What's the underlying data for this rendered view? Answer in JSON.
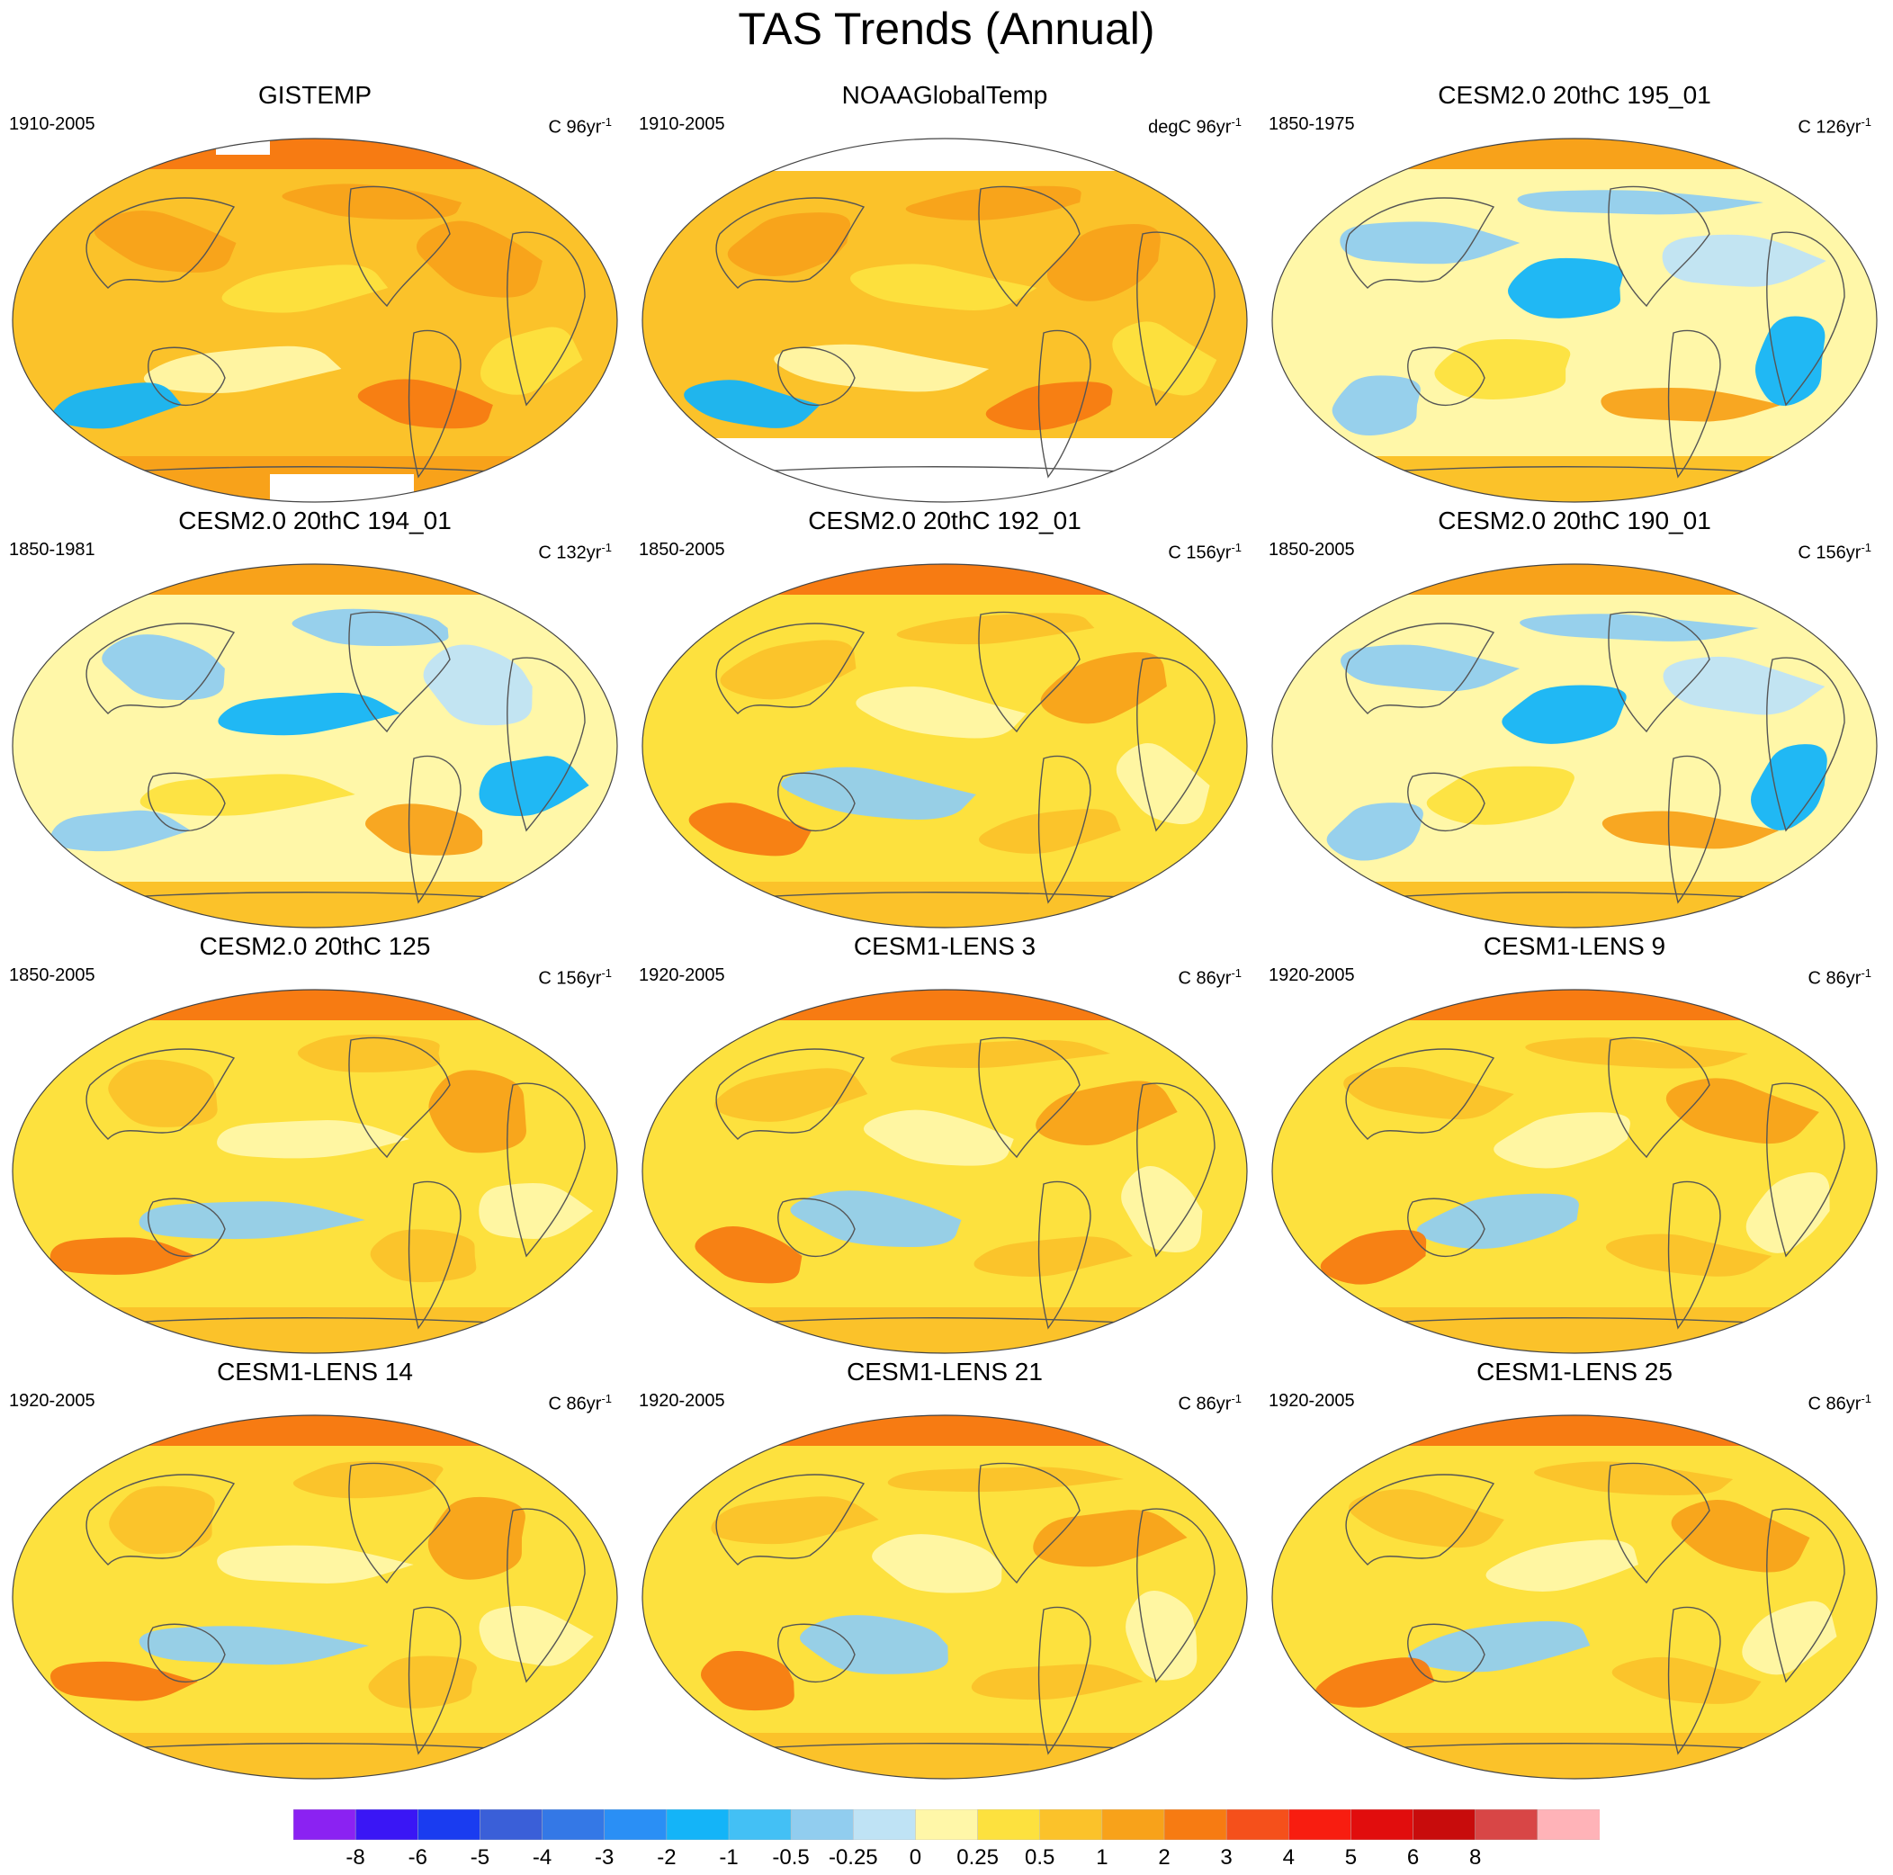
{
  "title": "TAS Trends (Annual)",
  "chart_data": [
    {
      "type": "heatmap",
      "title": "GISTEMP",
      "period": "1910-2005",
      "units_base": "C 96yr",
      "units_exp": "-1",
      "palette_theme": "warm",
      "missing": "polar"
    },
    {
      "type": "heatmap",
      "title": "NOAAGlobalTemp",
      "period": "1910-2005",
      "units_base": "degC 96yr",
      "units_exp": "-1",
      "palette_theme": "warm",
      "missing": "polar-large"
    },
    {
      "type": "heatmap",
      "title": "CESM2.0 20thC 195_01",
      "period": "1850-1975",
      "units_base": "C 126yr",
      "units_exp": "-1",
      "palette_theme": "cool",
      "missing": "none"
    },
    {
      "type": "heatmap",
      "title": "CESM2.0 20thC 194_01",
      "period": "1850-1981",
      "units_base": "C 132yr",
      "units_exp": "-1",
      "palette_theme": "cool",
      "missing": "none"
    },
    {
      "type": "heatmap",
      "title": "CESM2.0 20thC 192_01",
      "period": "1850-2005",
      "units_base": "C 156yr",
      "units_exp": "-1",
      "palette_theme": "mixed",
      "missing": "none"
    },
    {
      "type": "heatmap",
      "title": "CESM2.0 20thC 190_01",
      "period": "1850-2005",
      "units_base": "C 156yr",
      "units_exp": "-1",
      "palette_theme": "cool",
      "missing": "none"
    },
    {
      "type": "heatmap",
      "title": "CESM2.0 20thC 125",
      "period": "1850-2005",
      "units_base": "C 156yr",
      "units_exp": "-1",
      "palette_theme": "mixed",
      "missing": "none"
    },
    {
      "type": "heatmap",
      "title": "CESM1-LENS 3",
      "period": "1920-2005",
      "units_base": "C 86yr",
      "units_exp": "-1",
      "palette_theme": "mixed",
      "missing": "none"
    },
    {
      "type": "heatmap",
      "title": "CESM1-LENS 9",
      "period": "1920-2005",
      "units_base": "C 86yr",
      "units_exp": "-1",
      "palette_theme": "mixed",
      "missing": "none"
    },
    {
      "type": "heatmap",
      "title": "CESM1-LENS 14",
      "period": "1920-2005",
      "units_base": "C 86yr",
      "units_exp": "-1",
      "palette_theme": "mixed",
      "missing": "none"
    },
    {
      "type": "heatmap",
      "title": "CESM1-LENS 21",
      "period": "1920-2005",
      "units_base": "C 86yr",
      "units_exp": "-1",
      "palette_theme": "mixed",
      "missing": "none"
    },
    {
      "type": "heatmap",
      "title": "CESM1-LENS 25",
      "period": "1920-2005",
      "units_base": "C 86yr",
      "units_exp": "-1",
      "palette_theme": "mixed",
      "missing": "none"
    }
  ],
  "colorbar": {
    "labels": [
      "-8",
      "-6",
      "-5",
      "-4",
      "-3",
      "-2",
      "-1",
      "-0.5",
      "-0.25",
      "0",
      "0.25",
      "0.5",
      "1",
      "2",
      "3",
      "4",
      "5",
      "6",
      "8"
    ],
    "colors": [
      "#8b22f2",
      "#3a16f5",
      "#1a3cf0",
      "#3a5fd8",
      "#3478e6",
      "#2a8ff5",
      "#14b4f8",
      "#43c0f5",
      "#91cdef",
      "#bfe3f5",
      "#fff7a8",
      "#fde13e",
      "#fbc22a",
      "#f8a21a",
      "#f77b12",
      "#f5501b",
      "#f81d10",
      "#e10d0d",
      "#c80c0c",
      "#d84646",
      "#ffb3b8"
    ],
    "land_outline": "#555555",
    "missing_color": "#ffffff"
  }
}
